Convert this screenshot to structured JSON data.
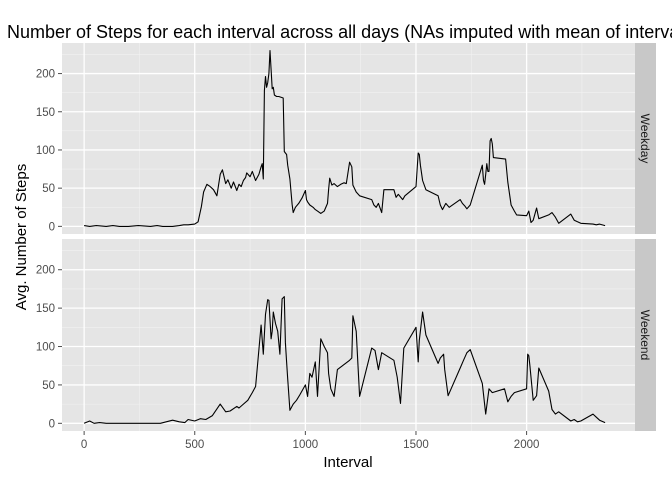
{
  "chart_data": {
    "type": "line",
    "title": "Number of Steps for each interval across all days (NAs imputed with mean of interval)",
    "xlabel": "Interval",
    "ylabel": "Avg. Number of Steps",
    "xlim": [
      -100,
      2490
    ],
    "ylim": [
      -10,
      240
    ],
    "x_ticks": [
      0,
      500,
      1000,
      1500,
      2000
    ],
    "y_ticks": [
      0,
      50,
      100,
      150,
      200
    ],
    "grid": true,
    "facet_position": "right",
    "panels": [
      {
        "label": "Weekday",
        "x": [
          0,
          25,
          55,
          100,
          130,
          160,
          200,
          245,
          300,
          330,
          355,
          400,
          430,
          450,
          470,
          500,
          515,
          530,
          540,
          555,
          570,
          585,
          600,
          615,
          625,
          640,
          650,
          665,
          675,
          690,
          700,
          710,
          720,
          730,
          735,
          750,
          760,
          775,
          790,
          800,
          805,
          810,
          815,
          820,
          825,
          830,
          835,
          840,
          845,
          850,
          855,
          860,
          870,
          880,
          900,
          905,
          910,
          915,
          920,
          930,
          940,
          945,
          955,
          970,
          985,
          1000,
          1005,
          1010,
          1020,
          1035,
          1045,
          1055,
          1070,
          1085,
          1100,
          1105,
          1110,
          1120,
          1130,
          1145,
          1160,
          1175,
          1185,
          1200,
          1210,
          1215,
          1230,
          1245,
          1300,
          1310,
          1320,
          1330,
          1345,
          1355,
          1400,
          1410,
          1420,
          1440,
          1450,
          1500,
          1510,
          1515,
          1520,
          1530,
          1545,
          1600,
          1610,
          1620,
          1635,
          1650,
          1700,
          1710,
          1720,
          1730,
          1745,
          1800,
          1805,
          1810,
          1815,
          1820,
          1825,
          1830,
          1835,
          1840,
          1845,
          1850,
          1905,
          1915,
          1930,
          1945,
          1955,
          2000,
          2010,
          2020,
          2030,
          2045,
          2055,
          2100,
          2115,
          2130,
          2145,
          2200,
          2215,
          2230,
          2245,
          2300,
          2315,
          2330,
          2355
        ],
        "y": [
          1,
          0,
          1,
          0,
          1,
          0,
          0,
          1,
          0,
          1,
          0,
          0,
          1,
          2,
          2,
          3,
          6,
          26,
          45,
          55,
          52,
          48,
          40,
          68,
          74,
          56,
          61,
          50,
          58,
          47,
          55,
          52,
          60,
          64,
          70,
          65,
          72,
          60,
          68,
          78,
          82,
          62,
          178,
          196,
          182,
          188,
          200,
          230,
          205,
          180,
          182,
          172,
          170,
          170,
          168,
          98,
          96,
          94,
          80,
          62,
          29,
          18,
          25,
          30,
          37,
          47,
          35,
          32,
          28,
          25,
          22,
          20,
          17,
          20,
          30,
          48,
          63,
          54,
          56,
          52,
          55,
          57,
          56,
          84,
          78,
          54,
          45,
          40,
          35,
          28,
          25,
          30,
          18,
          48,
          48,
          38,
          42,
          35,
          40,
          52,
          96,
          94,
          80,
          60,
          48,
          40,
          28,
          22,
          30,
          25,
          35,
          30,
          27,
          23,
          28,
          80,
          60,
          55,
          68,
          82,
          72,
          72,
          112,
          115,
          108,
          90,
          88,
          58,
          28,
          20,
          15,
          14,
          20,
          5,
          8,
          24,
          10,
          15,
          18,
          12,
          4,
          16,
          8,
          6,
          4,
          3,
          2,
          3,
          1
        ],
        "ylim": [
          -10,
          240
        ]
      },
      {
        "label": "Weekend",
        "x": [
          0,
          25,
          45,
          70,
          100,
          160,
          200,
          245,
          300,
          345,
          400,
          430,
          455,
          470,
          500,
          525,
          550,
          580,
          615,
          640,
          660,
          690,
          700,
          720,
          740,
          760,
          775,
          800,
          810,
          820,
          830,
          835,
          840,
          845,
          850,
          855,
          865,
          875,
          885,
          895,
          905,
          910,
          915,
          920,
          930,
          945,
          960,
          975,
          1000,
          1010,
          1020,
          1030,
          1045,
          1055,
          1070,
          1085,
          1100,
          1105,
          1115,
          1130,
          1145,
          1200,
          1210,
          1215,
          1230,
          1245,
          1300,
          1315,
          1330,
          1345,
          1400,
          1415,
          1430,
          1445,
          1500,
          1510,
          1515,
          1530,
          1545,
          1600,
          1610,
          1625,
          1630,
          1645,
          1700,
          1715,
          1730,
          1745,
          1800,
          1815,
          1830,
          1845,
          1900,
          1915,
          1930,
          1945,
          2000,
          2005,
          2010,
          2015,
          2030,
          2045,
          2055,
          2100,
          2115,
          2130,
          2145,
          2200,
          2215,
          2230,
          2245,
          2300,
          2315,
          2330,
          2355
        ],
        "y": [
          0,
          3,
          0,
          1,
          0,
          0,
          0,
          0,
          0,
          0,
          4,
          2,
          1,
          5,
          3,
          6,
          5,
          10,
          25,
          15,
          16,
          22,
          20,
          25,
          30,
          40,
          48,
          128,
          90,
          142,
          161,
          160,
          135,
          110,
          120,
          145,
          130,
          120,
          90,
          162,
          165,
          105,
          80,
          58,
          17,
          25,
          30,
          37,
          50,
          35,
          65,
          60,
          80,
          35,
          110,
          100,
          92,
          65,
          45,
          35,
          70,
          82,
          85,
          140,
          120,
          35,
          98,
          95,
          70,
          92,
          82,
          60,
          26,
          98,
          125,
          80,
          108,
          145,
          115,
          78,
          85,
          90,
          70,
          36,
          72,
          82,
          92,
          96,
          52,
          12,
          45,
          40,
          45,
          28,
          35,
          40,
          45,
          90,
          88,
          75,
          30,
          36,
          72,
          42,
          18,
          12,
          15,
          3,
          5,
          2,
          3,
          12,
          8,
          4,
          1
        ],
        "ylim": [
          -10,
          240
        ]
      }
    ]
  }
}
